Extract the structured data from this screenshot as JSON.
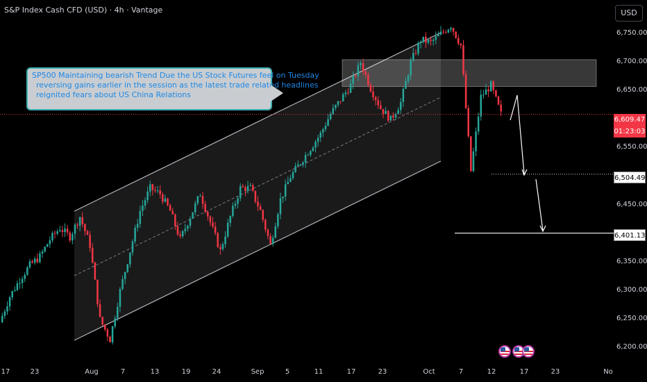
{
  "header": {
    "title": "S&P Index Cash CFD (USD) · 4h · Vantage"
  },
  "currency_button": "USD",
  "annotation": {
    "lines": [
      "SP500 Maintaining bearish Trend Due the US Stock Futures feel on Tuesday",
      "reversing gains earlier in the session as the latest trade related headlines",
      "reignited fears about US China Relations"
    ]
  },
  "price_labels": {
    "current": "6,609.47",
    "countdown": "01:23:03",
    "target1": "6,504.49",
    "target2": "6,401.13"
  },
  "colors": {
    "up": "#26a69a",
    "down": "#f23645",
    "background": "#000000",
    "text": "#d1d4dc"
  },
  "chart_data": {
    "type": "candlestick",
    "title": "S&P Index Cash CFD (USD) · 4h · Vantage",
    "y_ticks": [
      6750,
      6700,
      6650,
      6550,
      6450,
      6350,
      6300,
      6250,
      6200
    ],
    "y_tick_labels": [
      "6,750.00",
      "6,700.00",
      "6,650.00",
      "6,550.00",
      "6,450.00",
      "6,350.00",
      "6,300.00",
      "6,250.00",
      "6,200.00"
    ],
    "x_tick_labels": [
      "17",
      "23",
      "Aug",
      "7",
      "13",
      "19",
      "24",
      "Sep",
      "5",
      "11",
      "17",
      "23",
      "Oct",
      "7",
      "12",
      "17",
      "23",
      "No"
    ],
    "ylim": [
      6180,
      6790
    ],
    "current_price": 6609.47,
    "target_levels": [
      6504.49,
      6401.13
    ],
    "resistance_zone": [
      6658,
      6705
    ],
    "channel": {
      "upper": [
        [
          6430,
          6780
        ],
        [
          6120,
          6530
        ]
      ],
      "lower": [
        [
          6200,
          6120
        ],
        [
          6250,
          6370
        ]
      ]
    },
    "series_path": [
      {
        "close": 6245
      },
      {
        "close": 6290
      },
      {
        "close": 6320
      },
      {
        "close": 6345
      },
      {
        "close": 6360
      },
      {
        "close": 6390
      },
      {
        "close": 6410
      },
      {
        "close": 6395
      },
      {
        "close": 6430
      },
      {
        "close": 6380
      },
      {
        "close": 6250
      },
      {
        "close": 6215
      },
      {
        "close": 6300
      },
      {
        "close": 6370
      },
      {
        "close": 6440
      },
      {
        "close": 6480
      },
      {
        "close": 6470
      },
      {
        "close": 6440
      },
      {
        "close": 6390
      },
      {
        "close": 6430
      },
      {
        "close": 6470
      },
      {
        "close": 6420
      },
      {
        "close": 6370
      },
      {
        "close": 6430
      },
      {
        "close": 6480
      },
      {
        "close": 6480
      },
      {
        "close": 6440
      },
      {
        "close": 6380
      },
      {
        "close": 6460
      },
      {
        "close": 6500
      },
      {
        "close": 6525
      },
      {
        "close": 6550
      },
      {
        "close": 6575
      },
      {
        "close": 6610
      },
      {
        "close": 6635
      },
      {
        "close": 6660
      },
      {
        "close": 6700
      },
      {
        "close": 6655
      },
      {
        "close": 6620
      },
      {
        "close": 6600
      },
      {
        "close": 6630
      },
      {
        "close": 6700
      },
      {
        "close": 6740
      },
      {
        "close": 6735
      },
      {
        "close": 6750
      },
      {
        "close": 6765
      },
      {
        "close": 6730
      },
      {
        "close": 6510
      },
      {
        "close": 6640
      },
      {
        "close": 6660
      },
      {
        "close": 6609.47
      }
    ]
  }
}
